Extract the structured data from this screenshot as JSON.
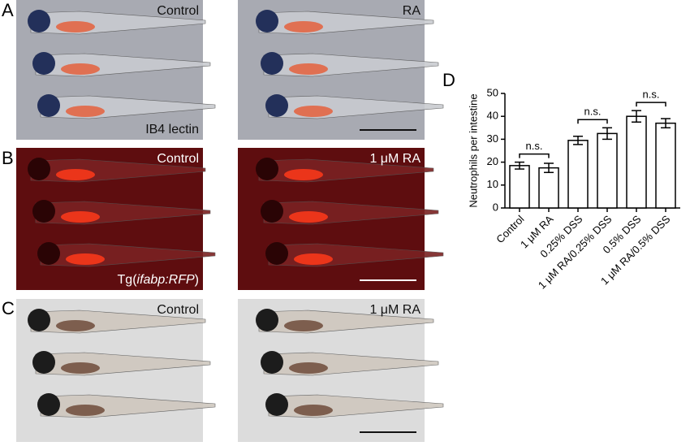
{
  "panels": [
    {
      "letter": "A",
      "left": {
        "label": "Control",
        "caption": "IB4 lectin"
      },
      "right": {
        "label": "RA"
      }
    },
    {
      "letter": "B",
      "left": {
        "label": "Control",
        "caption_parts": [
          "Tg(",
          "ifabp:RFP",
          ")"
        ]
      },
      "right": {
        "label": "1 μM RA"
      }
    },
    {
      "letter": "C",
      "left": {
        "label": "Control"
      },
      "right": {
        "label": "1 μM RA"
      }
    },
    {
      "letter": "D"
    }
  ],
  "chart_data": {
    "type": "bar",
    "ylabel": "Neutrophils per intestine",
    "categories": [
      "Control",
      "1 μM RA",
      "0.25% DSS",
      "1 μM RA/0.25% DSS",
      "0.5% DSS",
      "1 μM RA/0.5% DSS"
    ],
    "values": [
      18.5,
      17.5,
      29.5,
      32.5,
      40,
      37
    ],
    "errors": [
      1.5,
      2,
      1.8,
      2.5,
      2.5,
      2
    ],
    "color": "#ffffff",
    "ylim": [
      0,
      50
    ],
    "yticks": [
      0,
      10,
      20,
      30,
      40,
      50
    ],
    "annotations": [
      {
        "text": "n.s.",
        "between": [
          0,
          1
        ]
      },
      {
        "text": "n.s.",
        "between": [
          2,
          3
        ]
      },
      {
        "text": "n.s.",
        "between": [
          4,
          5
        ]
      }
    ]
  }
}
